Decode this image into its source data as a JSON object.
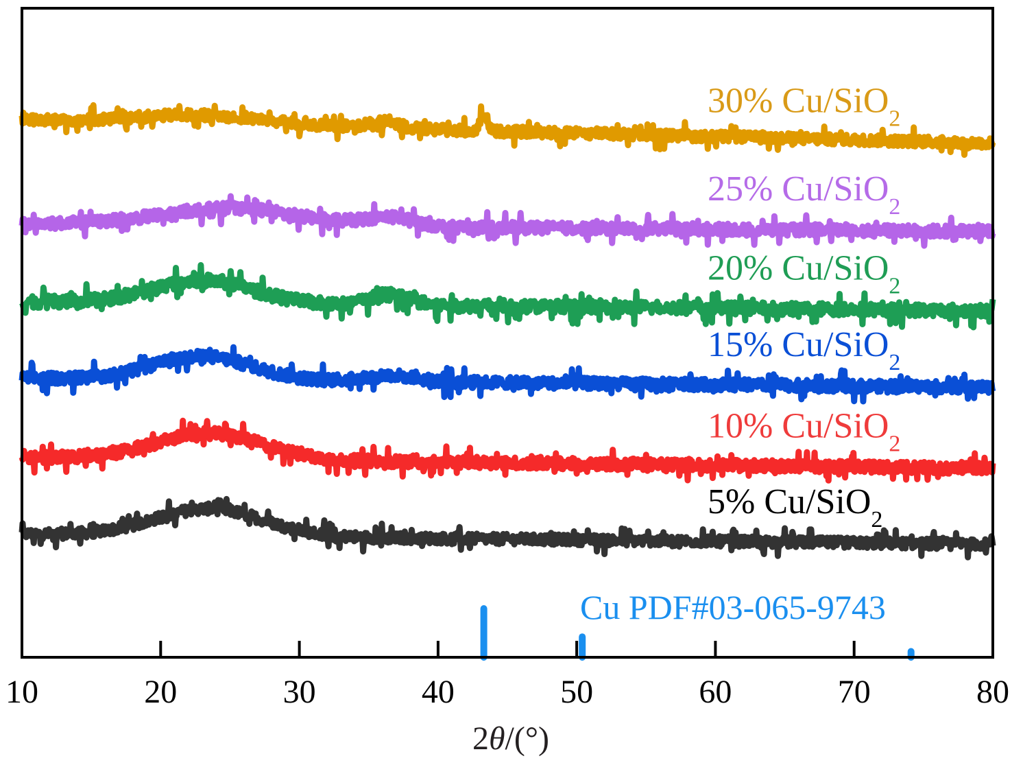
{
  "chart_data": {
    "type": "line",
    "title": "",
    "xlabel": "2θ/(°)",
    "xlabel_parts": {
      "prefix": "2",
      "theta": "θ",
      "suffix": "/(°)"
    },
    "ylabel": "",
    "xlim": [
      10,
      80
    ],
    "ylim": [
      0,
      100
    ],
    "y_units": "a.u. (stacked, offset)",
    "xticks": [
      10,
      20,
      30,
      40,
      50,
      60,
      70,
      80
    ],
    "xtick_labels": [
      "10",
      "20",
      "30",
      "40",
      "50",
      "60",
      "70",
      "80"
    ],
    "grid": false,
    "legend": "inline labels at right end of each curve",
    "series": [
      {
        "name": "5% Cu/SiO2",
        "label_main": "5% Cu/SiO",
        "label_sub": "2",
        "color": "#333333",
        "label_color": "#000000",
        "baseline_start": 19.0,
        "baseline_end": 17.4,
        "broad_hump": {
          "center": 23.5,
          "width": 5.5,
          "height": 4.2
        },
        "peaks": [],
        "noise": 1.0
      },
      {
        "name": "10% Cu/SiO2",
        "label_main": "10% Cu/SiO",
        "label_sub": "2",
        "color": "#f52a2a",
        "label_color": "#ef3b3b",
        "baseline_start": 30.8,
        "baseline_end": 29.1,
        "broad_hump": {
          "center": 23.5,
          "width": 5.5,
          "height": 4.0
        },
        "peaks": [],
        "noise": 1.1
      },
      {
        "name": "15% Cu/SiO2",
        "label_main": "15% Cu/SiO",
        "label_sub": "2",
        "color": "#0a4fd6",
        "label_color": "#0a4fd6",
        "baseline_start": 43.0,
        "baseline_end": 41.6,
        "broad_hump": {
          "center": 23.0,
          "width": 5.0,
          "height": 3.6
        },
        "peaks": [
          {
            "x": 36.5,
            "width": 2.5,
            "height": 1.0
          }
        ],
        "noise": 1.1
      },
      {
        "name": "20% Cu/SiO2",
        "label_main": "20% Cu/SiO",
        "label_sub": "2",
        "color": "#1e9e55",
        "label_color": "#1f9d55",
        "baseline_start": 54.8,
        "baseline_end": 53.4,
        "broad_hump": {
          "center": 23.0,
          "width": 5.0,
          "height": 3.6
        },
        "peaks": [
          {
            "x": 36.5,
            "width": 2.0,
            "height": 1.6
          }
        ],
        "noise": 1.2
      },
      {
        "name": "25% Cu/SiO2",
        "label_main": "25% Cu/SiO",
        "label_sub": "2",
        "color": "#b565e8",
        "label_color": "#b56be8",
        "baseline_start": 66.8,
        "baseline_end": 65.6,
        "broad_hump": {
          "center": 25.0,
          "width": 7.0,
          "height": 2.6
        },
        "peaks": [
          {
            "x": 36.5,
            "width": 2.5,
            "height": 1.3
          }
        ],
        "noise": 1.1
      },
      {
        "name": "30% Cu/SiO2",
        "label_main": "30% Cu/SiO",
        "label_sub": "2",
        "color": "#e09a00",
        "label_color": "#d99a17",
        "baseline_start": 82.8,
        "baseline_end": 79.2,
        "broad_hump": {
          "center": 23.0,
          "width": 6.5,
          "height": 1.4
        },
        "peaks": [
          {
            "x": 36.0,
            "width": 1.8,
            "height": 0.9
          },
          {
            "x": 43.3,
            "width": 0.35,
            "height": 2.8
          }
        ],
        "noise": 1.0
      }
    ],
    "reference": {
      "name": "Cu PDF#03-065-9743",
      "color": "#1a8fef",
      "lines": [
        {
          "x": 43.3,
          "relative_intensity": 100
        },
        {
          "x": 50.4,
          "relative_intensity": 42
        },
        {
          "x": 74.1,
          "relative_intensity": 12
        }
      ]
    }
  }
}
